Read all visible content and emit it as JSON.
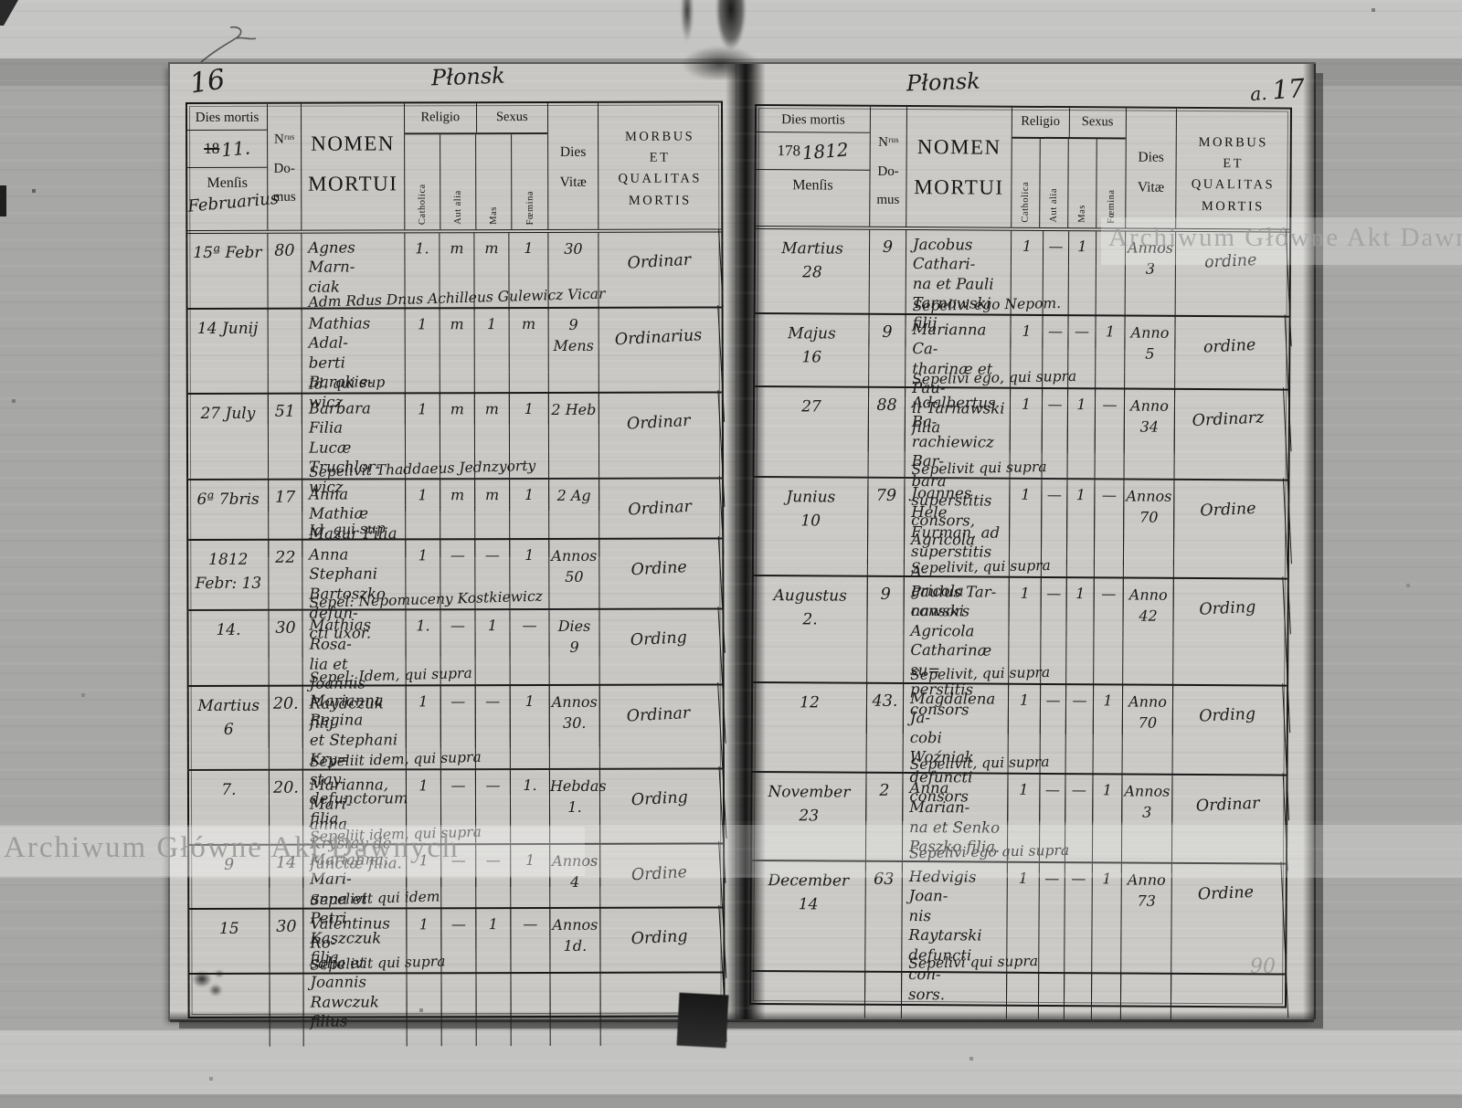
{
  "watermark": {
    "text": "Archiwum Główne Akt Dawnych"
  },
  "headers": {
    "dies_mortis": "Dies mortis",
    "mensis": "Menſis",
    "nrus_domus": "Nʳᵘˢ\nDo-\nmus",
    "nomen": "NOMEN\nMORTUI",
    "religio": "Religio",
    "catholica": "Catholica",
    "aut_alia": "Aut alia",
    "sexus": "Sexus",
    "mas": "Mas",
    "foemina": "Fœmina",
    "dies_vitae": "Dies\nVitæ",
    "morbus": "MORBUS\nET\nQUALITAS\nMORTIS"
  },
  "left_page": {
    "page_number": "16",
    "title": "Płonsk",
    "year_printed": "18",
    "year_hand": "11.",
    "mensis_hand": "Februarius",
    "rows": [
      {
        "date": "15ª Febr",
        "nrus": "80",
        "name": "Agnes Marn-\nciak",
        "cath": "1.",
        "aut": "m",
        "mas": "m",
        "foem": "1",
        "dies": "30",
        "morbus": "Ordinar",
        "note": "Adm Rdus Dnus Achilleus Gulewicz Vicar"
      },
      {
        "date": "14 Junij",
        "nrus": "",
        "name": "Mathias Adal-\nberti Barakie-\nwicz",
        "cath": "1",
        "aut": "m",
        "mas": "1",
        "foem": "m",
        "dies": "9 Mens",
        "morbus": "Ordinarius",
        "note": "Id. qui sup"
      },
      {
        "date": "27 July",
        "nrus": "51",
        "name": "Barbara Filia\nLucæ Truchlor-\nwicz",
        "cath": "1",
        "aut": "m",
        "mas": "m",
        "foem": "1",
        "dies": "2 Heb",
        "morbus": "Ordinar",
        "note": "Sepelivit Thaddaeus Jednzyorty"
      },
      {
        "date": "6ª 7bris",
        "nrus": "17",
        "name": "Anna Mathiæ\nMazur Filia",
        "cath": "1",
        "aut": "m",
        "mas": "m",
        "foem": "1",
        "dies": "2 Ag",
        "morbus": "Ordinar",
        "note": "Id. qui sup"
      },
      {
        "date": "1812\nFebr: 13",
        "nrus": "22",
        "name": "Anna Stephani\nBartoszko defun-\ncti uxor.",
        "cath": "1",
        "aut": "—",
        "mas": "—",
        "foem": "1",
        "dies": "Annos\n50",
        "morbus": "Ordine",
        "note": "Sepel: Nepomuceny Kostkiewicz"
      },
      {
        "date": "14.",
        "nrus": "30",
        "name": "Mathias Rosa-\nlia et Joannis\nRaydczuk filij",
        "cath": "1.",
        "aut": "—",
        "mas": "1",
        "foem": "—",
        "dies": "Dies\n9",
        "morbus": "Ording",
        "note": "Sepel: Idem, qui supra"
      },
      {
        "date": "Martius\n6",
        "nrus": "20.",
        "name": "Marianna Regina\net Stephani Kry=\nstay defunctorum\nfilia.",
        "cath": "1",
        "aut": "—",
        "mas": "—",
        "foem": "1",
        "dies": "Annos\n30.",
        "morbus": "Ordinar",
        "note": "Sepeliit idem, qui supra"
      },
      {
        "date": "7.",
        "nrus": "20.",
        "name": "Marianna, Mari-\nanna Krystay de-\nfunctæ filia.",
        "cath": "1",
        "aut": "—",
        "mas": "—",
        "foem": "1.",
        "dies": "Hebdas\n1.",
        "morbus": "Ording",
        "note": "Sepeliit idem, qui supra"
      },
      {
        "date": "9",
        "nrus": "14",
        "name": "Marianna, Mari-\nanna et Petri\nKaszczuk filia",
        "cath": "1",
        "aut": "—",
        "mas": "—",
        "foem": "1",
        "dies": "Annos\n4",
        "morbus": "Ordine",
        "note": "Sepelivit qui idem"
      },
      {
        "date": "15",
        "nrus": "30",
        "name": "Valentinus Ro-\nsalia et Joannis\nRawczuk filius",
        "cath": "1",
        "aut": "—",
        "mas": "1",
        "foem": "—",
        "dies": "Annos\n1d.",
        "morbus": "Ording",
        "note": "Sepelivit qui supra"
      }
    ]
  },
  "right_page": {
    "page_number": "17",
    "page_number_prefix": "a.",
    "title": "Płonsk",
    "year_printed": "178",
    "year_hand": "1812",
    "mensis_hand": "",
    "corner_mark": "90",
    "rows": [
      {
        "date": "Martius\n28",
        "nrus": "9",
        "name": "Jacobus Cathari-\nna et Pauli\nTarnowski filij",
        "cath": "1",
        "aut": "—",
        "mas": "1",
        "foem": "",
        "dies": "Annos\n3",
        "morbus": "ordine",
        "note": "Sepelivi ego Nepom."
      },
      {
        "date": "Majus\n16",
        "nrus": "9",
        "name": "Marianna Ca-\ntharinæ et Pau-\nli Tarnawski filia",
        "cath": "1",
        "aut": "—",
        "mas": "—",
        "foem": "1",
        "dies": "Anno\n5",
        "morbus": "ordine",
        "note": "Sepelivi ego, qui supra"
      },
      {
        "date": "27",
        "nrus": "88",
        "name": "Adalbertus Ba-\nrachiewicz Bar-\nbara superstitis\nconsors, Agricola",
        "cath": "1",
        "aut": "—",
        "mas": "1",
        "foem": "—",
        "dies": "Anno\n34",
        "morbus": "Ordinarz",
        "note": "Sepelivit qui supra"
      },
      {
        "date": "Junius\n10",
        "nrus": "79",
        "name": "Joannes Hele\nFurman, ad\nsuperstitis A-\ngricola consors",
        "cath": "1",
        "aut": "—",
        "mas": "1",
        "foem": "—",
        "dies": "Annos\n70",
        "morbus": "Ordine",
        "note": "Sepelivit, qui supra"
      },
      {
        "date": "Augustus\n2.",
        "nrus": "9",
        "name": "Paulus Tar-\nnawski Agricola\nCatharinæ su=\nperstitis consors",
        "cath": "1",
        "aut": "—",
        "mas": "1",
        "foem": "—",
        "dies": "Anno\n42",
        "morbus": "Ording",
        "note": "Sepelivit, qui supra"
      },
      {
        "date": "12",
        "nrus": "43.",
        "name": "Magdalena Ja-\ncobi Woźniak\ndefuncti consors",
        "cath": "1",
        "aut": "—",
        "mas": "—",
        "foem": "1",
        "dies": "Anno\n70",
        "morbus": "Ording",
        "note": "Sepelivit, qui supra"
      },
      {
        "date": "November\n23",
        "nrus": "2",
        "name": "Anna Marian-\nna et Senko\nPaszko filia.",
        "cath": "1",
        "aut": "—",
        "mas": "—",
        "foem": "1",
        "dies": "Annos\n3",
        "morbus": "Ordinar",
        "note": "Sepelivi ego qui supra"
      },
      {
        "date": "December\n14",
        "nrus": "63",
        "name": "Hedvigis Joan-\nnis Raytarski\ndefuncti con-\nsors.",
        "cath": "1",
        "aut": "—",
        "mas": "—",
        "foem": "1",
        "dies": "Anno\n73",
        "morbus": "Ordine",
        "note": "Sepelivi qui supra"
      }
    ]
  }
}
